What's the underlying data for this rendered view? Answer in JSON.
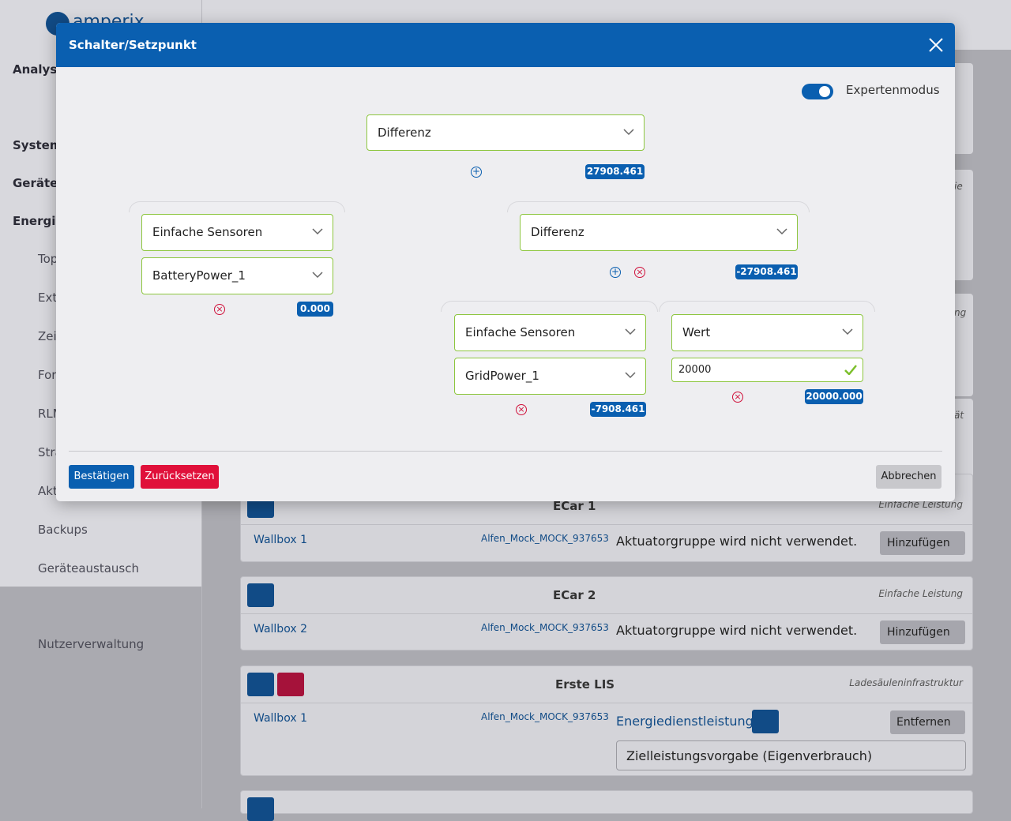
{
  "sidebar": {
    "brand": "amperix",
    "items": [
      "Analyse",
      "System",
      "Gerätek",
      "Energie",
      "Top",
      "Ext.",
      "Zei",
      "For",
      "RLM",
      "Stra",
      "Akt",
      "Backups",
      "Geräteaustausch",
      "Nutzerverwaltung"
    ]
  },
  "side_fragments": [
    "ie",
    "ng",
    "ät"
  ],
  "cards": [
    {
      "title": "ECar 1",
      "type": "Einfache Leistung",
      "device": "Wallbox 1",
      "id": "Alfen_Mock_MOCK_937653",
      "status": "Aktuatorgruppe wird nicht verwendet.",
      "action": "Hinzufügen"
    },
    {
      "title": "ECar 2",
      "type": "Einfache Leistung",
      "device": "Wallbox 2",
      "id": "Alfen_Mock_MOCK_937653",
      "status": "Aktuatorgruppe wird nicht verwendet.",
      "action": "Hinzufügen"
    },
    {
      "title": "Erste LIS",
      "type": "Ladesäuleninfrastruktur",
      "device": "Wallbox 1",
      "id": "Alfen_Mock_MOCK_937653",
      "service": "Energiedienstleistung",
      "action": "Entfernen",
      "select": "Zielleistungsvorgabe (Eigenverbrauch)"
    }
  ],
  "modal": {
    "title": "Schalter/Setzpunkt",
    "toggle": "Expertenmodus",
    "root": {
      "select": "Differenz",
      "value": "27908.461"
    },
    "left": {
      "select": "Einfache Sensoren",
      "sensor": "BatteryPower_1",
      "value": "0.000"
    },
    "right": {
      "select": "Differenz",
      "value": "-27908.461",
      "left": {
        "select": "Einfache Sensoren",
        "sensor": "GridPower_1",
        "value": "-7908.461"
      },
      "right": {
        "select": "Wert",
        "input": "20000",
        "value": "20000.000"
      }
    },
    "buttons": {
      "confirm": "Bestätigen",
      "reset": "Zurücksetzen",
      "cancel": "Abbrechen"
    }
  }
}
